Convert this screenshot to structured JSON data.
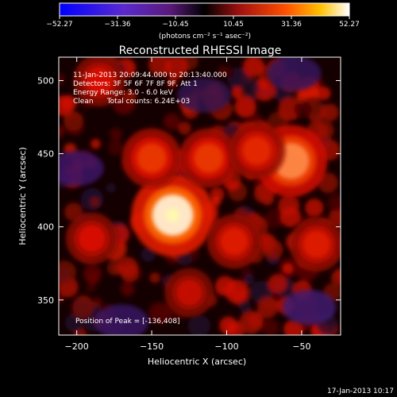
{
  "colorbar": {
    "ticks": [
      "−52.27",
      "−31.36",
      "−10.45",
      "10.45",
      "31.36",
      "52.27"
    ],
    "unit_label": "(photons cm⁻² s⁻¹ asec⁻²)"
  },
  "title": "Reconstructed RHESSI Image",
  "info": {
    "line1": "11-Jan-2013 20:09:44.000 to 20:13:40.000",
    "line2": "Detectors: 3F 5F 6F 7F 8F 9F, Att 1",
    "line3": "Energy Range: 3.0 - 6.0 keV",
    "line4": "Clean      Total counts: 6.24E+03"
  },
  "peak_label": "Position of Peak = [-136,408]",
  "footer_date": "17-Jan-2013 10:17",
  "colors": {
    "background": "#000000",
    "negative": "#2a1a8c",
    "positive": "#ff3000",
    "peak": "#fff8b0"
  },
  "chart_data": {
    "type": "heatmap",
    "title": "Reconstructed RHESSI Image",
    "xlabel": "Heliocentric X (arcsec)",
    "ylabel": "Heliocentric Y (arcsec)",
    "xlim": [
      -212,
      -24
    ],
    "ylim": [
      326,
      516
    ],
    "xticks": [
      -200,
      -150,
      -100,
      -50
    ],
    "yticks": [
      350,
      400,
      450,
      500
    ],
    "colorbar_range": [
      -52.27,
      52.27
    ],
    "colorbar_ticks": [
      -52.27,
      -31.36,
      -10.45,
      10.45,
      31.36,
      52.27
    ],
    "colormap": "blue-purple-black-red-yellow-white",
    "peak": {
      "x": -136,
      "y": 408,
      "value": 52.27
    },
    "bright_sources": [
      {
        "x": -136,
        "y": 408,
        "level": 1.0
      },
      {
        "x": -57,
        "y": 445,
        "level": 0.8
      },
      {
        "x": -112,
        "y": 447,
        "level": 0.55
      },
      {
        "x": -80,
        "y": 452,
        "level": 0.5
      },
      {
        "x": -150,
        "y": 447,
        "level": 0.55
      },
      {
        "x": -40,
        "y": 388,
        "level": 0.45
      },
      {
        "x": -95,
        "y": 390,
        "level": 0.45
      },
      {
        "x": -125,
        "y": 355,
        "level": 0.35
      },
      {
        "x": -185,
        "y": 500,
        "level": 0.4
      },
      {
        "x": -190,
        "y": 392,
        "level": 0.4
      }
    ],
    "negative_regions": [
      {
        "x": -200,
        "y": 440,
        "level": -0.5
      },
      {
        "x": -45,
        "y": 345,
        "level": -0.55
      },
      {
        "x": -55,
        "y": 505,
        "level": -0.4
      },
      {
        "x": -170,
        "y": 335,
        "level": -0.45
      },
      {
        "x": -115,
        "y": 490,
        "level": -0.3
      }
    ]
  }
}
